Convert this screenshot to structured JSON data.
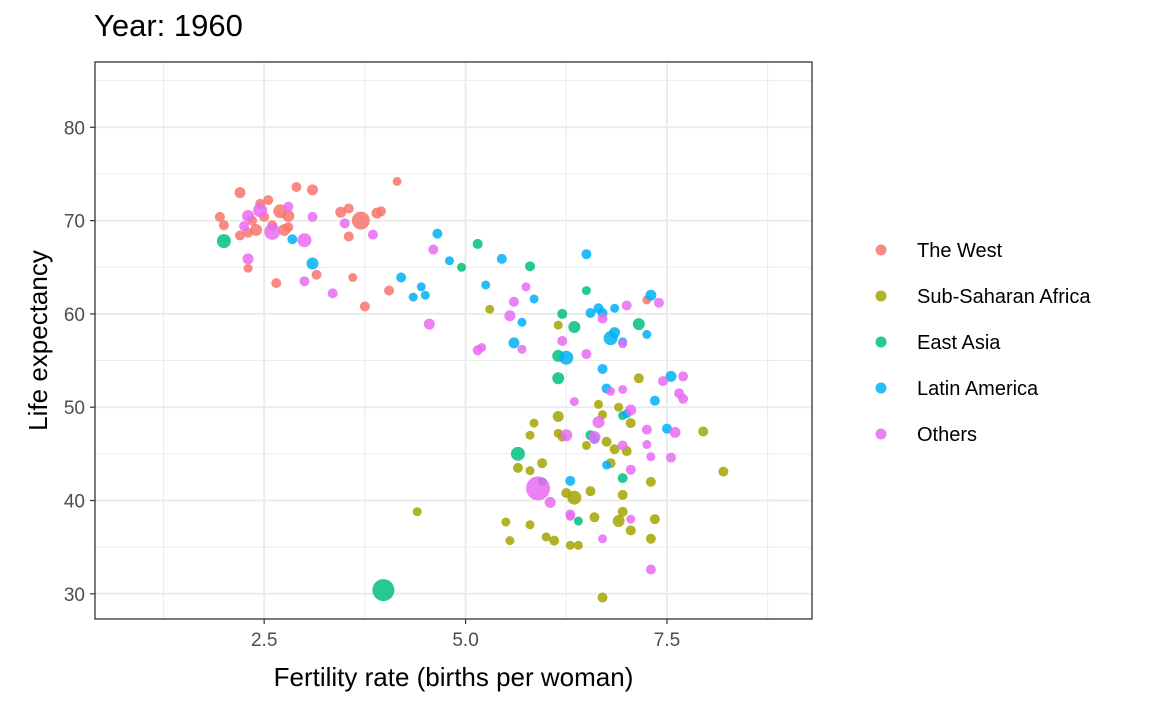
{
  "chart_data": {
    "type": "scatter",
    "title": "Year: 1960",
    "xlabel": "Fertility rate (births per woman)",
    "ylabel": "Life expectancy",
    "xlim": [
      0.4,
      9.3
    ],
    "ylim": [
      27.3,
      87
    ],
    "xticks": [
      2.5,
      5.0,
      7.5
    ],
    "xtick_labels": [
      "2.5",
      "5.0",
      "7.5"
    ],
    "yticks": [
      30,
      40,
      50,
      60,
      70,
      80
    ],
    "ytick_labels": [
      "30",
      "40",
      "50",
      "60",
      "70",
      "80"
    ],
    "grid": true,
    "legend_position": "right",
    "series": [
      {
        "name": "The West",
        "color": "#F8766D",
        "points": [
          [
            1.95,
            70.4,
            5
          ],
          [
            2.0,
            69.5,
            5
          ],
          [
            2.2,
            73.0,
            5.5
          ],
          [
            2.2,
            68.4,
            5
          ],
          [
            2.3,
            68.7,
            5
          ],
          [
            2.3,
            64.9,
            4.5
          ],
          [
            2.35,
            70.0,
            5
          ],
          [
            2.4,
            69.0,
            6
          ],
          [
            2.45,
            71.8,
            5
          ],
          [
            2.5,
            70.4,
            5
          ],
          [
            2.55,
            72.2,
            5
          ],
          [
            2.6,
            69.5,
            5
          ],
          [
            2.65,
            63.3,
            5
          ],
          [
            2.7,
            71.0,
            7
          ],
          [
            2.75,
            69.0,
            6
          ],
          [
            2.8,
            70.5,
            6
          ],
          [
            2.8,
            69.3,
            5
          ],
          [
            2.9,
            73.6,
            5
          ],
          [
            3.1,
            73.3,
            5.5
          ],
          [
            3.15,
            64.2,
            5
          ],
          [
            3.45,
            70.9,
            5.5
          ],
          [
            3.55,
            71.3,
            5
          ],
          [
            3.55,
            68.3,
            5
          ],
          [
            3.6,
            63.9,
            4.5
          ],
          [
            3.7,
            70.0,
            9
          ],
          [
            3.75,
            60.8,
            5
          ],
          [
            3.9,
            70.8,
            5.5
          ],
          [
            3.95,
            71.0,
            5
          ],
          [
            4.05,
            62.5,
            5
          ],
          [
            4.15,
            74.2,
            4.5
          ],
          [
            7.25,
            61.5,
            4.5
          ]
        ]
      },
      {
        "name": "Sub-Saharan Africa",
        "color": "#A3A500",
        "points": [
          [
            4.4,
            38.8,
            4.5
          ],
          [
            5.3,
            60.5,
            4.5
          ],
          [
            5.5,
            37.7,
            4.5
          ],
          [
            5.55,
            35.7,
            4.5
          ],
          [
            5.65,
            43.5,
            5
          ],
          [
            5.8,
            43.2,
            4.5
          ],
          [
            5.8,
            37.4,
            4.5
          ],
          [
            5.8,
            47.0,
            4.5
          ],
          [
            5.85,
            48.3,
            4.5
          ],
          [
            5.95,
            44.0,
            5
          ],
          [
            6.0,
            36.1,
            4.5
          ],
          [
            6.1,
            35.7,
            5
          ],
          [
            6.15,
            49.0,
            5.5
          ],
          [
            6.15,
            47.2,
            4.5
          ],
          [
            6.15,
            58.8,
            4.5
          ],
          [
            6.2,
            46.8,
            4.5
          ],
          [
            6.25,
            40.8,
            5
          ],
          [
            6.3,
            35.2,
            4.5
          ],
          [
            6.35,
            40.3,
            7
          ],
          [
            6.4,
            35.2,
            4.5
          ],
          [
            6.5,
            45.9,
            4.5
          ],
          [
            6.55,
            41.0,
            5
          ],
          [
            6.6,
            38.2,
            5
          ],
          [
            6.65,
            50.3,
            4.5
          ],
          [
            6.7,
            49.2,
            4.5
          ],
          [
            6.75,
            46.3,
            5
          ],
          [
            6.8,
            44.0,
            5
          ],
          [
            6.85,
            45.5,
            5
          ],
          [
            6.7,
            29.6,
            5
          ],
          [
            6.9,
            37.8,
            6
          ],
          [
            6.9,
            50.0,
            4.5
          ],
          [
            6.95,
            40.6,
            5
          ],
          [
            6.95,
            38.8,
            5
          ],
          [
            7.0,
            45.3,
            5
          ],
          [
            7.05,
            48.3,
            5
          ],
          [
            7.05,
            36.8,
            5
          ],
          [
            7.15,
            53.1,
            5
          ],
          [
            7.3,
            42.0,
            5
          ],
          [
            7.3,
            35.9,
            5
          ],
          [
            7.35,
            38.0,
            5
          ],
          [
            7.95,
            47.4,
            5
          ],
          [
            8.2,
            43.1,
            5
          ]
        ]
      },
      {
        "name": "East Asia",
        "color": "#00BF7D",
        "points": [
          [
            2.0,
            67.8,
            7
          ],
          [
            3.98,
            30.4,
            11
          ],
          [
            4.95,
            65.0,
            4.5
          ],
          [
            5.15,
            67.5,
            5
          ],
          [
            5.65,
            45.0,
            7
          ],
          [
            5.8,
            65.1,
            5
          ],
          [
            5.95,
            42.0,
            4.5
          ],
          [
            6.15,
            55.5,
            6
          ],
          [
            6.15,
            53.1,
            6
          ],
          [
            6.2,
            60.0,
            5
          ],
          [
            6.35,
            58.6,
            6
          ],
          [
            6.4,
            37.8,
            4.5
          ],
          [
            6.5,
            62.5,
            4.5
          ],
          [
            6.55,
            47.0,
            5
          ],
          [
            6.95,
            49.1,
            4.5
          ],
          [
            6.95,
            42.4,
            5
          ],
          [
            7.15,
            58.9,
            6
          ]
        ]
      },
      {
        "name": "Latin America",
        "color": "#00B0F6",
        "points": [
          [
            2.85,
            68.0,
            5
          ],
          [
            3.1,
            65.4,
            6
          ],
          [
            4.2,
            63.9,
            5
          ],
          [
            4.35,
            61.8,
            4.5
          ],
          [
            4.45,
            62.9,
            4.5
          ],
          [
            4.5,
            62.0,
            4.5
          ],
          [
            4.65,
            68.6,
            5
          ],
          [
            4.8,
            65.7,
            4.5
          ],
          [
            5.25,
            63.1,
            4.5
          ],
          [
            5.45,
            65.9,
            5
          ],
          [
            5.6,
            56.9,
            5.5
          ],
          [
            5.7,
            59.1,
            4.5
          ],
          [
            5.85,
            61.6,
            4.5
          ],
          [
            6.25,
            55.3,
            7
          ],
          [
            6.3,
            42.1,
            5
          ],
          [
            6.5,
            66.4,
            5
          ],
          [
            6.55,
            60.1,
            5
          ],
          [
            6.6,
            46.6,
            5
          ],
          [
            6.65,
            60.6,
            5
          ],
          [
            6.7,
            60.1,
            5
          ],
          [
            6.7,
            54.1,
            5
          ],
          [
            6.75,
            52.0,
            5
          ],
          [
            6.8,
            57.4,
            7
          ],
          [
            6.85,
            58.0,
            5.5
          ],
          [
            6.85,
            60.6,
            4.5
          ],
          [
            6.95,
            57.0,
            4.5
          ],
          [
            7.0,
            49.3,
            4.5
          ],
          [
            7.25,
            57.8,
            4.5
          ],
          [
            7.3,
            62.0,
            5.5
          ],
          [
            7.35,
            50.7,
            5
          ],
          [
            7.5,
            47.7,
            5
          ],
          [
            7.55,
            53.3,
            5.5
          ],
          [
            6.75,
            43.8,
            4.5
          ]
        ]
      },
      {
        "name": "Others",
        "color": "#E76BF3",
        "points": [
          [
            2.25,
            69.4,
            5
          ],
          [
            2.3,
            70.5,
            6
          ],
          [
            2.3,
            65.9,
            5.5
          ],
          [
            2.45,
            71.1,
            7
          ],
          [
            2.6,
            68.8,
            8
          ],
          [
            2.8,
            71.5,
            5
          ],
          [
            3.0,
            67.9,
            7
          ],
          [
            3.0,
            63.5,
            5
          ],
          [
            3.1,
            70.4,
            5
          ],
          [
            3.35,
            62.2,
            5
          ],
          [
            3.5,
            69.7,
            5
          ],
          [
            3.85,
            68.5,
            5
          ],
          [
            4.55,
            58.9,
            5.5
          ],
          [
            4.6,
            66.9,
            5
          ],
          [
            5.15,
            56.1,
            5
          ],
          [
            5.2,
            56.4,
            4.5
          ],
          [
            5.55,
            59.8,
            5.5
          ],
          [
            5.6,
            61.3,
            5
          ],
          [
            5.7,
            56.2,
            4.5
          ],
          [
            5.75,
            62.9,
            4.5
          ],
          [
            5.9,
            41.3,
            12
          ],
          [
            6.05,
            39.8,
            5.5
          ],
          [
            6.2,
            57.1,
            5
          ],
          [
            6.3,
            38.5,
            5
          ],
          [
            6.3,
            38.3,
            4.5
          ],
          [
            6.35,
            50.6,
            4.5
          ],
          [
            6.5,
            55.7,
            5
          ],
          [
            6.6,
            46.8,
            6
          ],
          [
            6.65,
            48.4,
            6
          ],
          [
            6.7,
            59.5,
            5
          ],
          [
            6.7,
            35.9,
            4.5
          ],
          [
            6.8,
            51.7,
            4.5
          ],
          [
            6.95,
            51.9,
            4.5
          ],
          [
            6.95,
            45.9,
            5
          ],
          [
            7.0,
            60.9,
            5
          ],
          [
            7.05,
            49.7,
            5.5
          ],
          [
            7.05,
            43.3,
            5
          ],
          [
            7.05,
            38.0,
            4.5
          ],
          [
            7.25,
            47.6,
            5
          ],
          [
            7.25,
            46.0,
            4.5
          ],
          [
            7.3,
            44.7,
            4.5
          ],
          [
            7.3,
            32.6,
            5
          ],
          [
            7.4,
            61.2,
            5
          ],
          [
            7.45,
            52.8,
            5
          ],
          [
            7.55,
            44.6,
            5
          ],
          [
            7.6,
            47.3,
            5.5
          ],
          [
            7.65,
            51.5,
            5
          ],
          [
            7.7,
            50.9,
            5
          ],
          [
            7.7,
            53.3,
            5
          ],
          [
            6.95,
            56.8,
            4.5
          ],
          [
            6.25,
            47.0,
            6
          ]
        ]
      }
    ]
  }
}
